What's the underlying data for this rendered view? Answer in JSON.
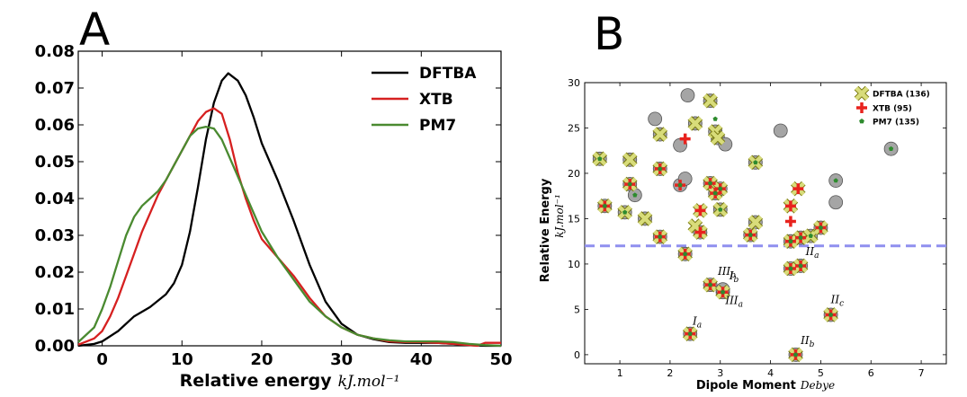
{
  "chart_data": [
    {
      "panel": "A",
      "type": "line",
      "xlabel": "Relative energy",
      "xlabel_unit": "kJ.mol⁻¹",
      "ylabel": "",
      "xlim": [
        -3,
        50
      ],
      "ylim": [
        0,
        0.08
      ],
      "xticks": [
        "0",
        "10",
        "20",
        "30",
        "40",
        "50"
      ],
      "yticks": [
        "0.00",
        "0.01",
        "0.02",
        "0.03",
        "0.04",
        "0.05",
        "0.06",
        "0.07",
        "0.08"
      ],
      "legend_position": "top-right",
      "series": [
        {
          "name": "DFTBA",
          "color": "#000000",
          "x": [
            -3,
            -1,
            0,
            2,
            4,
            6,
            8,
            9,
            10,
            11,
            12,
            13,
            14,
            15,
            15.8,
            17,
            18,
            19,
            20,
            22,
            24,
            26,
            28,
            30,
            32,
            34,
            36,
            38,
            40,
            42,
            44,
            46,
            48,
            50
          ],
          "y": [
            0,
            0.0005,
            0.0012,
            0.004,
            0.008,
            0.0105,
            0.014,
            0.017,
            0.022,
            0.031,
            0.043,
            0.056,
            0.066,
            0.072,
            0.074,
            0.072,
            0.068,
            0.062,
            0.055,
            0.045,
            0.034,
            0.022,
            0.012,
            0.006,
            0.003,
            0.0018,
            0.001,
            0.0008,
            0.0008,
            0.0008,
            0.0005,
            0.0002,
            0,
            0
          ]
        },
        {
          "name": "XTB",
          "color": "#d62020",
          "x": [
            -3,
            -1,
            0,
            1,
            2,
            3,
            4,
            5,
            6,
            7,
            8,
            9,
            10,
            11,
            12,
            13,
            14,
            15,
            16,
            17,
            18,
            19,
            20,
            22,
            24,
            26,
            28,
            30,
            32,
            34,
            36,
            38,
            40,
            42,
            44,
            46,
            47,
            48,
            50
          ],
          "y": [
            0.0003,
            0.002,
            0.004,
            0.008,
            0.013,
            0.019,
            0.025,
            0.031,
            0.036,
            0.041,
            0.045,
            0.049,
            0.053,
            0.057,
            0.061,
            0.0635,
            0.0645,
            0.063,
            0.056,
            0.047,
            0.04,
            0.034,
            0.029,
            0.024,
            0.019,
            0.013,
            0.008,
            0.005,
            0.003,
            0.002,
            0.0012,
            0.001,
            0.001,
            0.0008,
            0.0005,
            0.0002,
            0,
            0.0008,
            0.0008
          ]
        },
        {
          "name": "PM7",
          "color": "#4a8a30",
          "x": [
            -3,
            -1,
            0,
            1,
            2,
            3,
            4,
            5,
            6,
            7,
            8,
            9,
            10,
            11,
            12,
            13,
            14,
            15,
            16,
            17,
            18,
            19,
            20,
            22,
            24,
            26,
            28,
            30,
            32,
            34,
            36,
            38,
            40,
            42,
            44,
            46,
            48,
            50
          ],
          "y": [
            0.001,
            0.005,
            0.01,
            0.016,
            0.023,
            0.03,
            0.035,
            0.038,
            0.04,
            0.042,
            0.045,
            0.049,
            0.053,
            0.057,
            0.059,
            0.0595,
            0.059,
            0.056,
            0.051,
            0.046,
            0.041,
            0.036,
            0.031,
            0.024,
            0.018,
            0.012,
            0.008,
            0.005,
            0.003,
            0.002,
            0.0015,
            0.0012,
            0.0012,
            0.0012,
            0.001,
            0.0005,
            0.0002,
            0
          ]
        }
      ]
    },
    {
      "panel": "B",
      "type": "scatter",
      "xlabel": "Dipole Moment",
      "xlabel_unit": "Debye",
      "ylabel": "Relative Energy",
      "ylabel_unit": "kJ.mol⁻¹",
      "xlim": [
        0.3,
        7.5
      ],
      "ylim": [
        -1,
        30
      ],
      "xticks": [
        "1",
        "2",
        "3",
        "4",
        "5",
        "6",
        "7"
      ],
      "yticks": [
        "0",
        "5",
        "10",
        "15",
        "20",
        "25",
        "30"
      ],
      "legend_position": "top-right",
      "threshold_y": 12,
      "legend": [
        {
          "name": "DFTBA (136)",
          "color": "#d8dc7a"
        },
        {
          "name": "XTB (95)",
          "color": "#e8231e"
        },
        {
          "name": "PM7 (135)",
          "color": "#2e8b2e"
        }
      ],
      "gray_points": [
        [
          0.6,
          21.6
        ],
        [
          0.7,
          16.4
        ],
        [
          1.1,
          15.7
        ],
        [
          1.2,
          21.5
        ],
        [
          1.2,
          18.8
        ],
        [
          1.3,
          17.6
        ],
        [
          1.5,
          15.0
        ],
        [
          1.7,
          26.0
        ],
        [
          1.8,
          24.3
        ],
        [
          1.8,
          20.5
        ],
        [
          1.8,
          13.0
        ],
        [
          2.2,
          18.7
        ],
        [
          2.2,
          23.1
        ],
        [
          2.3,
          11.1
        ],
        [
          2.3,
          19.4
        ],
        [
          2.35,
          28.6
        ],
        [
          2.5,
          25.5
        ],
        [
          2.6,
          13.5
        ],
        [
          2.8,
          28.0
        ],
        [
          2.8,
          18.9
        ],
        [
          2.9,
          17.8
        ],
        [
          2.9,
          24.6
        ],
        [
          2.95,
          23.9
        ],
        [
          3.0,
          16.0
        ],
        [
          3.0,
          18.3
        ],
        [
          3.1,
          23.2
        ],
        [
          2.8,
          7.7
        ],
        [
          3.05,
          6.9
        ],
        [
          3.05,
          7.2
        ],
        [
          2.4,
          2.3
        ],
        [
          3.6,
          13.2
        ],
        [
          3.7,
          14.6
        ],
        [
          3.7,
          21.2
        ],
        [
          4.2,
          24.7
        ],
        [
          4.4,
          12.5
        ],
        [
          4.4,
          9.5
        ],
        [
          4.6,
          9.8
        ],
        [
          4.6,
          12.9
        ],
        [
          4.5,
          0.0
        ],
        [
          4.8,
          13.1
        ],
        [
          5.0,
          14.0
        ],
        [
          5.2,
          4.4
        ],
        [
          5.3,
          16.8
        ],
        [
          5.3,
          19.2
        ],
        [
          6.4,
          22.7
        ]
      ],
      "dftba_points": [
        [
          0.6,
          21.6
        ],
        [
          0.7,
          16.4
        ],
        [
          1.1,
          15.7
        ],
        [
          1.2,
          21.5
        ],
        [
          1.2,
          18.8
        ],
        [
          1.5,
          15.0
        ],
        [
          1.8,
          24.3
        ],
        [
          1.8,
          20.5
        ],
        [
          1.8,
          13.0
        ],
        [
          2.3,
          11.1
        ],
        [
          2.5,
          25.5
        ],
        [
          2.6,
          13.5
        ],
        [
          2.6,
          15.9
        ],
        [
          2.5,
          14.2
        ],
        [
          2.8,
          28.0
        ],
        [
          2.8,
          18.9
        ],
        [
          2.9,
          17.8
        ],
        [
          2.9,
          24.6
        ],
        [
          2.95,
          23.9
        ],
        [
          3.0,
          16.0
        ],
        [
          3.0,
          18.3
        ],
        [
          2.8,
          7.7
        ],
        [
          3.05,
          6.9
        ],
        [
          2.4,
          2.3
        ],
        [
          3.6,
          13.2
        ],
        [
          3.7,
          14.6
        ],
        [
          3.7,
          21.2
        ],
        [
          4.4,
          16.4
        ],
        [
          4.55,
          18.3
        ],
        [
          4.4,
          12.5
        ],
        [
          4.4,
          9.5
        ],
        [
          4.6,
          9.8
        ],
        [
          4.6,
          12.9
        ],
        [
          4.5,
          0.0
        ],
        [
          4.8,
          13.1
        ],
        [
          5.0,
          14.0
        ],
        [
          5.2,
          4.4
        ]
      ],
      "xtb_points": [
        [
          0.7,
          16.4
        ],
        [
          1.2,
          18.8
        ],
        [
          1.8,
          20.5
        ],
        [
          1.8,
          13.0
        ],
        [
          2.2,
          18.7
        ],
        [
          2.3,
          11.1
        ],
        [
          2.3,
          23.8
        ],
        [
          2.6,
          15.9
        ],
        [
          2.6,
          13.5
        ],
        [
          2.8,
          18.9
        ],
        [
          2.9,
          17.8
        ],
        [
          3.0,
          18.3
        ],
        [
          2.8,
          7.7
        ],
        [
          3.05,
          6.9
        ],
        [
          2.4,
          2.3
        ],
        [
          3.6,
          13.2
        ],
        [
          4.4,
          16.4
        ],
        [
          4.4,
          14.7
        ],
        [
          4.55,
          18.3
        ],
        [
          4.4,
          12.5
        ],
        [
          4.4,
          9.5
        ],
        [
          4.6,
          9.8
        ],
        [
          4.6,
          12.9
        ],
        [
          4.5,
          0.0
        ],
        [
          5.0,
          14.0
        ],
        [
          5.2,
          4.4
        ]
      ],
      "pm7_points": [
        [
          0.6,
          21.6
        ],
        [
          0.7,
          16.4
        ],
        [
          1.1,
          15.7
        ],
        [
          1.3,
          17.6
        ],
        [
          1.2,
          18.8
        ],
        [
          1.8,
          20.5
        ],
        [
          1.8,
          13.0
        ],
        [
          2.2,
          18.7
        ],
        [
          2.3,
          11.1
        ],
        [
          2.9,
          26.0
        ],
        [
          2.8,
          18.9
        ],
        [
          2.9,
          17.8
        ],
        [
          3.0,
          18.3
        ],
        [
          3.0,
          16.0
        ],
        [
          2.8,
          7.7
        ],
        [
          3.05,
          6.9
        ],
        [
          2.4,
          2.3
        ],
        [
          3.6,
          13.2
        ],
        [
          3.7,
          21.2
        ],
        [
          4.4,
          12.5
        ],
        [
          4.4,
          9.5
        ],
        [
          4.6,
          9.8
        ],
        [
          4.6,
          12.9
        ],
        [
          4.5,
          0.0
        ],
        [
          4.8,
          13.1
        ],
        [
          5.0,
          14.0
        ],
        [
          5.2,
          4.4
        ],
        [
          5.3,
          19.2
        ],
        [
          6.4,
          22.7
        ]
      ],
      "annotations": [
        {
          "base": "III",
          "sub": "b",
          "x": 2.95,
          "y": 8.8
        },
        {
          "base": "I",
          "sub": "b",
          "x": 3.18,
          "y": 8.3
        },
        {
          "base": "III",
          "sub": "a",
          "x": 3.1,
          "y": 5.6
        },
        {
          "base": "I",
          "sub": "a",
          "x": 2.45,
          "y": 3.3
        },
        {
          "base": "II",
          "sub": "a",
          "x": 4.7,
          "y": 11.0
        },
        {
          "base": "II",
          "sub": "c",
          "x": 5.2,
          "y": 5.7
        },
        {
          "base": "II",
          "sub": "b",
          "x": 4.6,
          "y": 1.2
        }
      ]
    }
  ],
  "labels": {
    "panel_a": "A",
    "panel_b": "B"
  }
}
